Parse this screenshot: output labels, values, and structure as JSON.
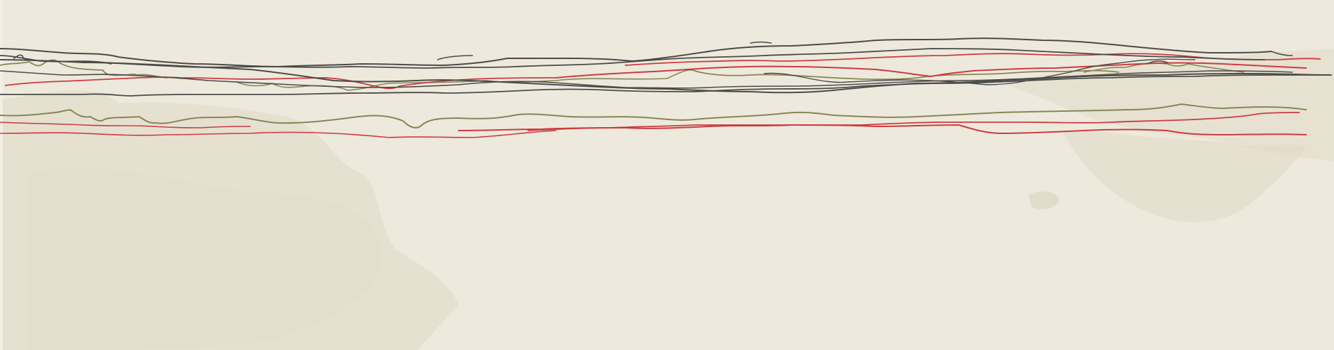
{
  "canvas": {
    "background": "#ede9dc",
    "stain_color": "#e4dece",
    "edge_color": "#f2efe5"
  },
  "strokes": {
    "colors": {
      "black": "#4a4a48",
      "red": "#cc3a3f",
      "olive": "#868555"
    }
  }
}
